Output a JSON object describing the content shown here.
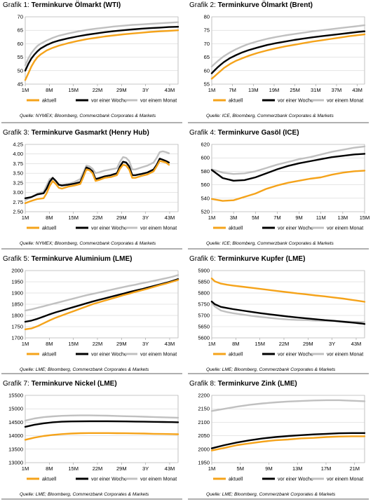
{
  "colors": {
    "aktuell": "#f5a31a",
    "woche": "#000000",
    "monat": "#c0c0c0",
    "grid": "#cccccc"
  },
  "legend_labels": [
    "aktuell",
    "vor einer Woche",
    "vor einem Monat"
  ],
  "chart_data": [
    {
      "type": "line",
      "label": "Grafik 1:",
      "title": "Terminkurve Ölmarkt (WTI)",
      "source": "Quelle: NYMEX; Bloomberg, Commerzbank Corporates & Markets",
      "xticks": [
        "1M",
        "8M",
        "15M",
        "22M",
        "29M",
        "3Y",
        "43M"
      ],
      "xlim": [
        1,
        51
      ],
      "ylim": [
        45,
        70
      ],
      "yticks": [
        45,
        50,
        55,
        60,
        65,
        70
      ],
      "x": [
        1,
        2,
        3,
        4,
        5,
        6,
        8,
        10,
        12,
        15,
        18,
        21,
        24,
        27,
        30,
        33,
        36,
        39,
        42,
        45,
        48,
        51
      ],
      "series": [
        {
          "name": "aktuell",
          "values": [
            46.5,
            49,
            51.5,
            53.5,
            55,
            56,
            57.5,
            58.5,
            59.3,
            60.2,
            61,
            61.7,
            62.2,
            62.7,
            63.1,
            63.5,
            63.8,
            64.1,
            64.4,
            64.6,
            64.8,
            65
          ]
        },
        {
          "name": "vor einer Woche",
          "values": [
            50,
            52.5,
            54.5,
            56,
            57.2,
            58.2,
            59.5,
            60.5,
            61.2,
            62,
            62.7,
            63.3,
            63.8,
            64.3,
            64.7,
            65,
            65.3,
            65.6,
            65.8,
            66,
            66.2,
            66.3
          ]
        },
        {
          "name": "vor einem Monat",
          "values": [
            52,
            54.5,
            56.5,
            58,
            59.2,
            60,
            61.2,
            62.2,
            63,
            63.8,
            64.5,
            65.1,
            65.6,
            66,
            66.4,
            66.7,
            67,
            67.2,
            67.4,
            67.6,
            67.8,
            68
          ]
        }
      ]
    },
    {
      "type": "line",
      "label": "Grafik 2:",
      "title": "Terminkurve Ölmarkt (Brent)",
      "source": "Quelle: ICE, Bloomberg, Commerzbank Corporates & Markets",
      "xticks": [
        "1M",
        "7M",
        "13M",
        "19M",
        "25M",
        "31M",
        "37M",
        "43M"
      ],
      "xlim": [
        1,
        51
      ],
      "ylim": [
        55,
        80
      ],
      "yticks": [
        55,
        60,
        65,
        70,
        75,
        80
      ],
      "x": [
        1,
        2,
        3,
        4,
        5,
        7,
        9,
        11,
        13,
        16,
        19,
        22,
        25,
        28,
        31,
        34,
        37,
        40,
        43,
        46,
        49,
        51
      ],
      "series": [
        {
          "name": "aktuell",
          "values": [
            57,
            58,
            59,
            60,
            61,
            62.5,
            63.7,
            64.6,
            65.5,
            66.6,
            67.5,
            68.3,
            69,
            69.6,
            70.2,
            70.8,
            71.3,
            71.8,
            72.3,
            72.8,
            73.2,
            73.5
          ]
        },
        {
          "name": "vor einer Woche",
          "values": [
            59,
            60.2,
            61.3,
            62.3,
            63.2,
            64.7,
            65.8,
            66.8,
            67.6,
            68.6,
            69.5,
            70.2,
            70.8,
            71.4,
            71.9,
            72.4,
            72.8,
            73.2,
            73.6,
            74,
            74.4,
            74.6
          ]
        },
        {
          "name": "vor einem Monat",
          "values": [
            61.5,
            62.6,
            63.6,
            64.5,
            65.4,
            66.8,
            68,
            69,
            69.9,
            70.9,
            71.8,
            72.5,
            73.1,
            73.6,
            74.1,
            74.6,
            75,
            75.4,
            75.8,
            76.2,
            76.6,
            76.9
          ]
        }
      ]
    },
    {
      "type": "line",
      "label": "Grafik 3:",
      "title": "Terminkurve Gasmarkt (Henry Hub)",
      "source": "Quelle: NYMEX; Bloomberg, Commerzbank Corporates & Markets",
      "xticks": [
        "1M",
        "8M",
        "15M",
        "22M",
        "29M",
        "3Y",
        "43M"
      ],
      "xlim": [
        1,
        51
      ],
      "ylim": [
        2.5,
        4.25
      ],
      "yticks": [
        2.5,
        2.75,
        3.0,
        3.25,
        3.5,
        3.75,
        4.0,
        4.25
      ],
      "x": [
        1,
        3,
        5,
        7,
        8,
        9,
        10,
        11,
        12,
        13,
        15,
        17,
        19,
        20,
        21,
        22,
        23,
        24,
        25,
        27,
        29,
        31,
        32,
        33,
        34,
        35,
        36,
        37,
        39,
        41,
        43,
        44,
        45,
        46,
        47,
        48
      ],
      "series": [
        {
          "name": "aktuell",
          "values": [
            2.72,
            2.78,
            2.83,
            2.85,
            2.98,
            3.17,
            3.3,
            3.22,
            3.12,
            3.1,
            3.15,
            3.18,
            3.22,
            3.4,
            3.6,
            3.58,
            3.5,
            3.3,
            3.32,
            3.38,
            3.4,
            3.45,
            3.62,
            3.72,
            3.7,
            3.6,
            3.38,
            3.38,
            3.43,
            3.47,
            3.55,
            3.68,
            3.82,
            3.8,
            3.78,
            3.72
          ]
        },
        {
          "name": "vor einer Woche",
          "values": [
            2.85,
            2.88,
            2.95,
            2.98,
            3.1,
            3.28,
            3.38,
            3.3,
            3.2,
            3.18,
            3.2,
            3.23,
            3.27,
            3.45,
            3.65,
            3.62,
            3.55,
            3.35,
            3.37,
            3.42,
            3.45,
            3.5,
            3.68,
            3.8,
            3.78,
            3.68,
            3.45,
            3.45,
            3.48,
            3.52,
            3.6,
            3.72,
            3.88,
            3.85,
            3.82,
            3.78
          ]
        },
        {
          "name": "vor einem Monat",
          "values": [
            2.8,
            2.88,
            2.97,
            3.02,
            3.18,
            3.35,
            3.38,
            3.3,
            3.2,
            3.2,
            3.22,
            3.27,
            3.35,
            3.52,
            3.7,
            3.68,
            3.62,
            3.5,
            3.52,
            3.57,
            3.6,
            3.63,
            3.8,
            3.92,
            3.9,
            3.82,
            3.6,
            3.6,
            3.65,
            3.7,
            3.78,
            3.9,
            4.05,
            4.07,
            4.05,
            4.02
          ]
        }
      ]
    },
    {
      "type": "line",
      "label": "Grafik 4:",
      "title": "Terminkurve Gasöl (ICE)",
      "source": "Quelle: ICE; Bloomberg, Commerzbank Corporates & Markets",
      "xticks": [
        "1M",
        "3M",
        "5M",
        "7M",
        "9M",
        "11M",
        "13M",
        "15M"
      ],
      "xlim": [
        1,
        15
      ],
      "ylim": [
        520,
        620
      ],
      "yticks": [
        520,
        540,
        560,
        580,
        600,
        620
      ],
      "x": [
        1,
        2,
        3,
        4,
        5,
        6,
        7,
        8,
        9,
        10,
        11,
        12,
        13,
        14,
        15
      ],
      "series": [
        {
          "name": "aktuell",
          "values": [
            539,
            536,
            537,
            542,
            547,
            554,
            559,
            563,
            566,
            569,
            571,
            575,
            578,
            580,
            581
          ]
        },
        {
          "name": "vor einer Woche",
          "values": [
            582,
            570,
            566,
            567,
            571,
            577,
            583,
            588,
            592,
            595,
            598,
            601,
            603,
            605,
            606
          ]
        },
        {
          "name": "vor einem Monat",
          "values": [
            583,
            578,
            576,
            577,
            580,
            585,
            590,
            594,
            598,
            601,
            605,
            609,
            612,
            615,
            617
          ]
        }
      ]
    },
    {
      "type": "line",
      "label": "Grafik 5:",
      "title": "Terminkurve Aluminium (LME)",
      "source": "Quelle: LME; Bloomberg, Commerzbank Corporates & Markets",
      "xticks": [
        "1M",
        "8M",
        "15M",
        "22M",
        "29M",
        "3Y",
        "43M"
      ],
      "xlim": [
        1,
        51
      ],
      "ylim": [
        1700,
        2000
      ],
      "yticks": [
        1700,
        1750,
        1800,
        1850,
        1900,
        1950,
        2000
      ],
      "x": [
        1,
        3,
        5,
        7,
        9,
        11,
        13,
        15,
        17,
        19,
        21,
        23,
        25,
        27,
        29,
        31,
        33,
        35,
        37,
        39,
        41,
        43,
        45,
        47,
        49,
        51
      ],
      "series": [
        {
          "name": "aktuell",
          "values": [
            1738,
            1742,
            1752,
            1765,
            1778,
            1790,
            1800,
            1810,
            1820,
            1830,
            1840,
            1850,
            1858,
            1866,
            1874,
            1882,
            1890,
            1897,
            1905,
            1912,
            1919,
            1927,
            1935,
            1942,
            1950,
            1958
          ]
        },
        {
          "name": "vor einer Woche",
          "values": [
            1772,
            1777,
            1785,
            1795,
            1805,
            1814,
            1822,
            1830,
            1838,
            1846,
            1854,
            1862,
            1869,
            1876,
            1883,
            1890,
            1897,
            1904,
            1911,
            1917,
            1924,
            1931,
            1938,
            1945,
            1953,
            1962
          ]
        },
        {
          "name": "vor einem Monat",
          "values": [
            1822,
            1827,
            1834,
            1841,
            1848,
            1855,
            1862,
            1869,
            1876,
            1883,
            1890,
            1896,
            1902,
            1908,
            1914,
            1920,
            1926,
            1932,
            1937,
            1943,
            1948,
            1954,
            1960,
            1966,
            1972,
            1980
          ]
        }
      ]
    },
    {
      "type": "line",
      "label": "Grafik 6:",
      "title": "Terminkurve Kupfer (LME)",
      "source": "Quelle: LME; Bloomberg, Commerzbank Corporates & Markets",
      "xticks": [
        "1M",
        "8M",
        "15M",
        "22M",
        "29M",
        "3Y",
        "43M"
      ],
      "xlim": [
        1,
        51
      ],
      "ylim": [
        5600,
        5900
      ],
      "yticks": [
        5600,
        5650,
        5700,
        5750,
        5800,
        5850,
        5900
      ],
      "x": [
        1,
        2,
        4,
        6,
        8,
        11,
        14,
        17,
        20,
        23,
        26,
        29,
        32,
        35,
        38,
        41,
        44,
        47,
        50,
        51
      ],
      "series": [
        {
          "name": "aktuell",
          "values": [
            5865,
            5852,
            5842,
            5837,
            5833,
            5828,
            5823,
            5818,
            5813,
            5808,
            5803,
            5798,
            5794,
            5789,
            5785,
            5780,
            5775,
            5769,
            5763,
            5761
          ]
        },
        {
          "name": "vor einer Woche",
          "values": [
            5762,
            5750,
            5738,
            5733,
            5728,
            5722,
            5716,
            5710,
            5705,
            5700,
            5695,
            5691,
            5687,
            5683,
            5679,
            5676,
            5672,
            5668,
            5664,
            5662
          ]
        },
        {
          "name": "vor einem Monat",
          "values": [
            5755,
            5740,
            5722,
            5715,
            5710,
            5704,
            5698,
            5693,
            5689,
            5685,
            5682,
            5680,
            5679,
            5677,
            5676,
            5675,
            5673,
            5672,
            5671,
            5670
          ]
        }
      ]
    },
    {
      "type": "line",
      "label": "Grafik 7:",
      "title": "Terminkurve Nickel (LME)",
      "source": "Quelle: LME; Bloomberg, Commerzbank Corporates & Markets",
      "xticks": [
        "1M",
        "8M",
        "15M",
        "22M",
        "29M",
        "3Y",
        "43M"
      ],
      "xlim": [
        1,
        51
      ],
      "ylim": [
        13000,
        15500
      ],
      "yticks": [
        13000,
        13500,
        14000,
        14500,
        15000,
        15500
      ],
      "x": [
        1,
        4,
        7,
        10,
        13,
        16,
        19,
        22,
        25,
        28,
        31,
        34,
        37,
        40,
        43,
        46,
        49,
        51
      ],
      "series": [
        {
          "name": "aktuell",
          "values": [
            13850,
            13930,
            13990,
            14030,
            14060,
            14080,
            14095,
            14100,
            14100,
            14100,
            14095,
            14090,
            14085,
            14080,
            14070,
            14065,
            14060,
            14055
          ]
        },
        {
          "name": "vor einer Woche",
          "values": [
            14330,
            14410,
            14460,
            14500,
            14520,
            14530,
            14535,
            14540,
            14540,
            14540,
            14535,
            14530,
            14525,
            14520,
            14515,
            14510,
            14505,
            14500
          ]
        },
        {
          "name": "vor einem Monat",
          "values": [
            14560,
            14640,
            14690,
            14720,
            14740,
            14750,
            14755,
            14755,
            14750,
            14745,
            14735,
            14725,
            14715,
            14705,
            14695,
            14685,
            14675,
            14670
          ]
        }
      ]
    },
    {
      "type": "line",
      "label": "Grafik 8:",
      "title": "Terminkurve Zink (LME)",
      "source": "Quelle: LME; Bloomberg, Commerzbank Corporates & Markets",
      "xticks": [
        "1M",
        "5M",
        "9M",
        "13M",
        "17M",
        "21M"
      ],
      "xlim": [
        1,
        25
      ],
      "ylim": [
        1950,
        2200
      ],
      "yticks": [
        1950,
        2000,
        2050,
        2100,
        2150,
        2200
      ],
      "x": [
        1,
        3,
        5,
        7,
        9,
        11,
        13,
        15,
        17,
        19,
        21,
        23,
        25
      ],
      "series": [
        {
          "name": "aktuell",
          "values": [
            1995,
            2005,
            2015,
            2022,
            2028,
            2033,
            2036,
            2040,
            2042,
            2045,
            2047,
            2048,
            2048
          ]
        },
        {
          "name": "vor einer Woche",
          "values": [
            2003,
            2015,
            2025,
            2033,
            2040,
            2045,
            2049,
            2052,
            2055,
            2057,
            2059,
            2060,
            2060
          ]
        },
        {
          "name": "vor einem Monat",
          "values": [
            2142,
            2150,
            2158,
            2165,
            2170,
            2174,
            2177,
            2179,
            2181,
            2182,
            2182,
            2180,
            2178
          ]
        }
      ]
    }
  ]
}
